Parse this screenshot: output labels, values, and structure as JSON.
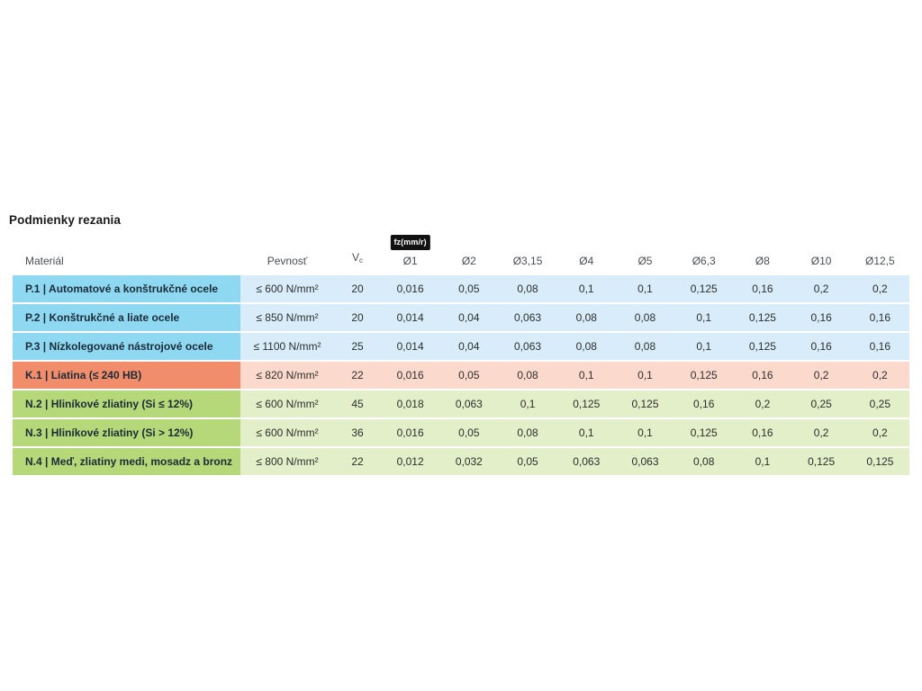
{
  "page": {
    "title": "Podmienky rezania"
  },
  "colors": {
    "steel_dark": "#8FD8F1",
    "steel_light": "#D8EDF9",
    "cast_dark": "#F28D6C",
    "cast_light": "#FBDACD",
    "nonferrous_dark": "#B6D878",
    "nonferrous_light": "#E2EFC8",
    "badge_bg": "#111111"
  },
  "table": {
    "feed_unit_badge": "fz(mm/r)",
    "headers": {
      "material": "Materiál",
      "strength": "Pevnosť",
      "vc_main": "V",
      "vc_sub": "c",
      "diameters": [
        "Ø1",
        "Ø2",
        "Ø3,15",
        "Ø4",
        "Ø5",
        "Ø6,3",
        "Ø8",
        "Ø10",
        "Ø12,5"
      ]
    },
    "rows": [
      {
        "group": "steel",
        "material": "P.1 | Automatové a konštrukčné ocele",
        "strength": "≤ 600 N/mm²",
        "vc": "20",
        "values": [
          "0,016",
          "0,05",
          "0,08",
          "0,1",
          "0,1",
          "0,125",
          "0,16",
          "0,2",
          "0,2"
        ]
      },
      {
        "group": "steel",
        "material": "P.2 | Konštrukčné a liate ocele",
        "strength": "≤ 850 N/mm²",
        "vc": "20",
        "values": [
          "0,014",
          "0,04",
          "0,063",
          "0,08",
          "0,08",
          "0,1",
          "0,125",
          "0,16",
          "0,16"
        ]
      },
      {
        "group": "steel",
        "material": "P.3 | Nízkolegované nástrojové ocele",
        "strength": "≤ 1100 N/mm²",
        "vc": "25",
        "values": [
          "0,014",
          "0,04",
          "0,063",
          "0,08",
          "0,08",
          "0,1",
          "0,125",
          "0,16",
          "0,16"
        ]
      },
      {
        "group": "cast-iron",
        "material": "K.1 | Liatina (≤ 240 HB)",
        "strength": "≤ 820 N/mm²",
        "vc": "22",
        "values": [
          "0,016",
          "0,05",
          "0,08",
          "0,1",
          "0,1",
          "0,125",
          "0,16",
          "0,2",
          "0,2"
        ]
      },
      {
        "group": "non-ferrous",
        "material": "N.2 | Hliníkové zliatiny (Si ≤ 12%)",
        "strength": "≤ 600 N/mm²",
        "vc": "45",
        "values": [
          "0,018",
          "0,063",
          "0,1",
          "0,125",
          "0,125",
          "0,16",
          "0,2",
          "0,25",
          "0,25"
        ]
      },
      {
        "group": "non-ferrous",
        "material": "N.3 | Hliníkové zliatiny (Si > 12%)",
        "strength": "≤ 600 N/mm²",
        "vc": "36",
        "values": [
          "0,016",
          "0,05",
          "0,08",
          "0,1",
          "0,1",
          "0,125",
          "0,16",
          "0,2",
          "0,2"
        ]
      },
      {
        "group": "non-ferrous",
        "material": "N.4 | Meď, zliatiny medi, mosadz a bronz",
        "strength": "≤ 800 N/mm²",
        "vc": "22",
        "values": [
          "0,012",
          "0,032",
          "0,05",
          "0,063",
          "0,063",
          "0,08",
          "0,1",
          "0,125",
          "0,125"
        ]
      }
    ]
  }
}
